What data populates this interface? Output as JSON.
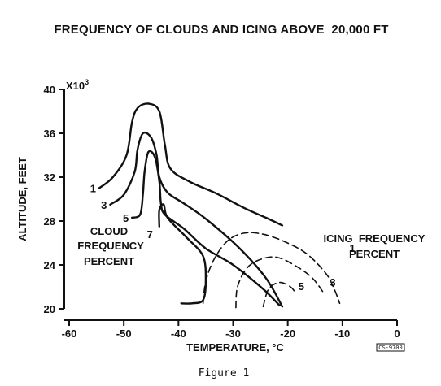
{
  "chart_data": {
    "type": "line",
    "title": "FREQUENCY OF CLOUDS AND ICING ABOVE  20,000 FT",
    "xlabel": "TEMPERATURE, °C",
    "ylabel": "ALTITUDE, FEET",
    "y_multiplier": "X10",
    "y_multiplier_exp": "3",
    "xlim": [
      -60,
      0
    ],
    "ylim": [
      20,
      40
    ],
    "x_ticks": [
      "-60",
      "-50",
      "-40",
      "-30",
      "-20",
      "-10",
      "0"
    ],
    "y_ticks": [
      "20",
      "24",
      "28",
      "32",
      "36",
      "40"
    ],
    "groups": {
      "cloud": [
        "CLOUD",
        "FREQUENCY",
        "PERCENT"
      ],
      "icing": [
        "ICING  FREQUENCY",
        "PERCENT"
      ]
    },
    "series": [
      {
        "name": "1",
        "group": "cloud",
        "style": "solid",
        "points": [
          [
            -54.5,
            31.0
          ],
          [
            -52,
            32.0
          ],
          [
            -49.5,
            34.0
          ],
          [
            -48.5,
            37.0
          ],
          [
            -47.5,
            38.3
          ],
          [
            -45.5,
            38.7
          ],
          [
            -43.5,
            38.0
          ],
          [
            -42.5,
            35.0
          ],
          [
            -41.5,
            32.8
          ],
          [
            -38,
            31.6
          ],
          [
            -33,
            30.5
          ],
          [
            -28,
            29.2
          ],
          [
            -24,
            28.3
          ],
          [
            -21,
            27.6
          ]
        ]
      },
      {
        "name": "3",
        "group": "cloud",
        "style": "solid",
        "points": [
          [
            -52.5,
            29.5
          ],
          [
            -50,
            30.4
          ],
          [
            -48,
            32.5
          ],
          [
            -47.5,
            34.5
          ],
          [
            -46.5,
            36.0
          ],
          [
            -45,
            35.6
          ],
          [
            -44,
            34.0
          ],
          [
            -43.5,
            32.0
          ],
          [
            -42,
            30.6
          ],
          [
            -39,
            29.6
          ],
          [
            -35,
            28.2
          ],
          [
            -29,
            25.6
          ],
          [
            -24,
            22.8
          ],
          [
            -21,
            20.2
          ]
        ]
      },
      {
        "name": "5",
        "group": "cloud",
        "style": "solid",
        "points": [
          [
            -48.5,
            28.3
          ],
          [
            -47,
            28.6
          ],
          [
            -46.5,
            30.5
          ],
          [
            -46.2,
            32.5
          ],
          [
            -45.5,
            34.3
          ],
          [
            -44.3,
            33.8
          ],
          [
            -43.5,
            31.6
          ],
          [
            -43.2,
            29.6
          ],
          [
            -42.5,
            28.6
          ],
          [
            -39,
            27.3
          ],
          [
            -35,
            25.5
          ],
          [
            -30,
            24.0
          ],
          [
            -24.5,
            21.8
          ],
          [
            -21.5,
            20.3
          ]
        ]
      },
      {
        "name": "7",
        "group": "cloud",
        "style": "solid",
        "points": [
          [
            -43.5,
            27.5
          ],
          [
            -43.5,
            29.0
          ],
          [
            -42.7,
            29.5
          ],
          [
            -42.0,
            28.3
          ],
          [
            -38.5,
            26.5
          ],
          [
            -35.5,
            24.8
          ],
          [
            -35.0,
            22.5
          ],
          [
            -35.5,
            20.8
          ],
          [
            -37.5,
            20.5
          ],
          [
            -39.5,
            20.5
          ]
        ]
      },
      {
        "name": "1",
        "group": "icing",
        "style": "dashed",
        "points": [
          [
            -35.5,
            20.5
          ],
          [
            -35.0,
            22.5
          ],
          [
            -33.5,
            24.5
          ],
          [
            -31,
            26.2
          ],
          [
            -28,
            26.9
          ],
          [
            -24.5,
            26.8
          ],
          [
            -20.5,
            26.1
          ],
          [
            -16.5,
            25.0
          ],
          [
            -13,
            23.2
          ],
          [
            -11.5,
            21.8
          ],
          [
            -10.5,
            20.5
          ]
        ]
      },
      {
        "name": "3",
        "group": "icing",
        "style": "dashed",
        "points": [
          [
            -29.5,
            20.1
          ],
          [
            -29.2,
            22.0
          ],
          [
            -27.5,
            23.7
          ],
          [
            -25,
            24.5
          ],
          [
            -22,
            24.7
          ],
          [
            -18.5,
            23.9
          ],
          [
            -15.5,
            22.8
          ],
          [
            -13.5,
            21.5
          ]
        ]
      },
      {
        "name": "5",
        "group": "icing",
        "style": "dashed",
        "points": [
          [
            -24.5,
            20.2
          ],
          [
            -23.5,
            21.8
          ],
          [
            -21.5,
            22.4
          ],
          [
            -19.5,
            22.0
          ],
          [
            -18.5,
            21.4
          ]
        ]
      }
    ],
    "annotations": {
      "caption": "Figure 1",
      "code": "CS-9700"
    }
  },
  "colors": {
    "ink": "#111111",
    "background": "#ffffff"
  }
}
